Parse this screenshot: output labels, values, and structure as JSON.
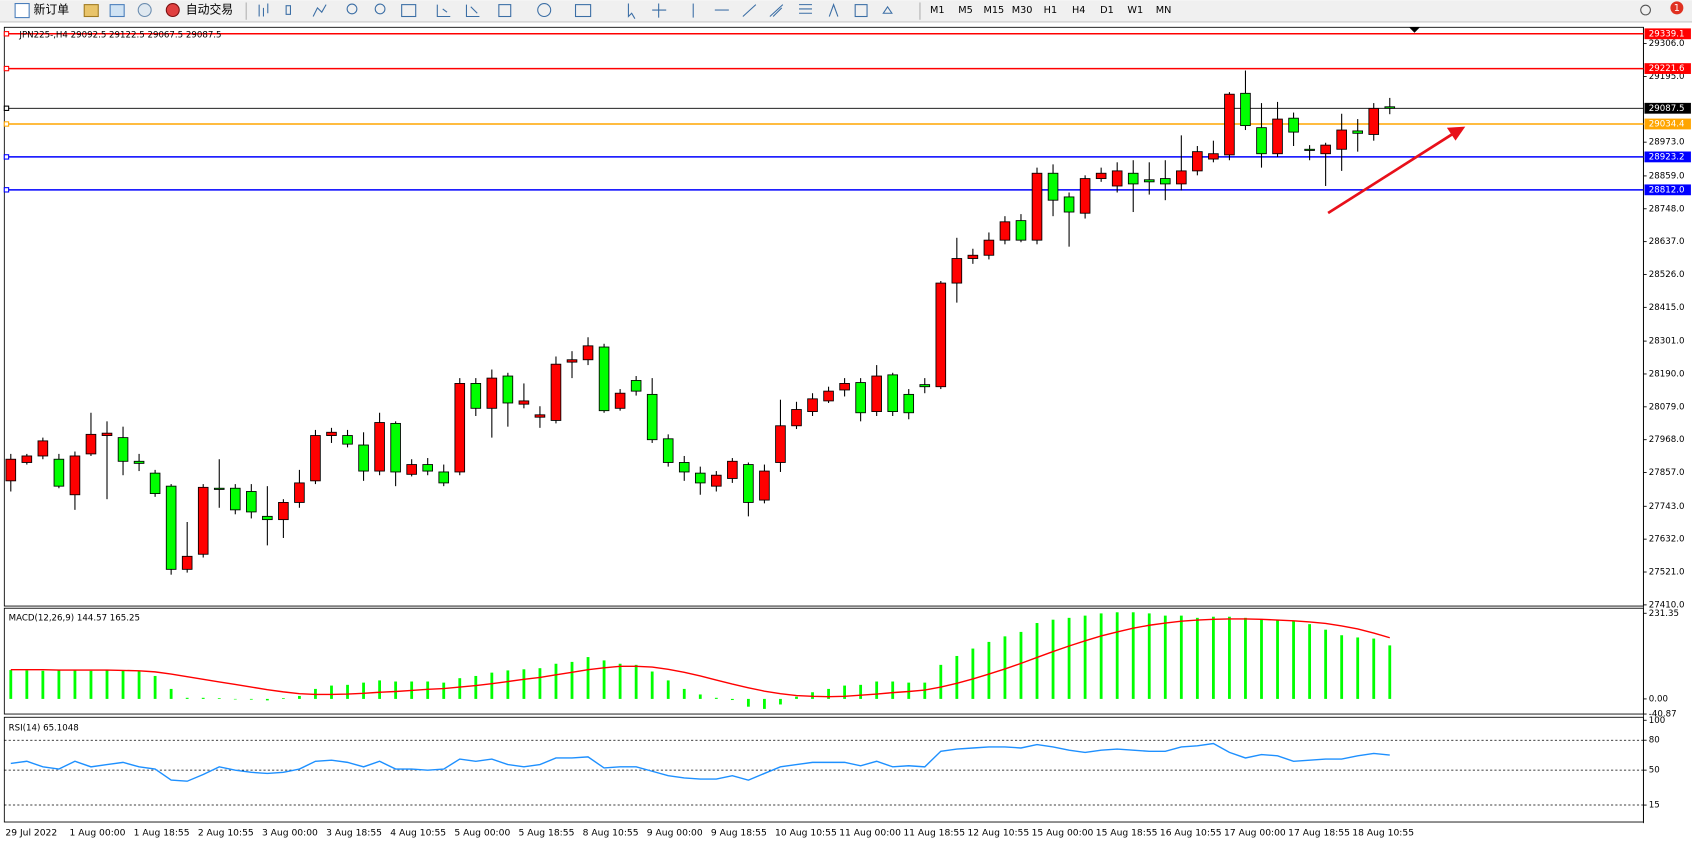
{
  "toolbar": {
    "new_order": "新订单",
    "auto_trading": "自动交易",
    "timeframes": [
      "M1",
      "M5",
      "M15",
      "M30",
      "H1",
      "H4",
      "D1",
      "W1",
      "MN"
    ],
    "notification": "1"
  },
  "chart_data": [
    {
      "type": "candlestick",
      "title": "JPN225-,H4  29092.5 29122.5 29067.5 29087.5",
      "categories": [
        "29 Jul 2022",
        null,
        null,
        null,
        "1 Aug 00:00",
        null,
        null,
        null,
        "1 Aug 18:55",
        null,
        null,
        null,
        "2 Aug 10:55",
        null,
        null,
        null,
        "3 Aug 00:00",
        null,
        null,
        null,
        "3 Aug 18:55",
        null,
        null,
        null,
        "4 Aug 10:55",
        null,
        null,
        null,
        "5 Aug 00:00",
        null,
        null,
        null,
        "5 Aug 18:55",
        null,
        null,
        null,
        "8 Aug 10:55",
        null,
        null,
        null,
        "9 Aug 00:00",
        null,
        null,
        null,
        "9 Aug 18:55",
        null,
        null,
        null,
        "10 Aug 10:55",
        null,
        null,
        null,
        "11 Aug 00:00",
        null,
        null,
        null,
        "11 Aug 18:55",
        null,
        null,
        null,
        "12 Aug 10:55",
        null,
        null,
        null,
        "15 Aug 00:00",
        null,
        null,
        null,
        "15 Aug 18:55",
        null,
        null,
        null,
        "16 Aug 10:55",
        null,
        null,
        null,
        "17 Aug 00:00",
        null,
        null,
        null,
        "17 Aug 18:55",
        null,
        null,
        null,
        "18 Aug 10:55",
        null,
        null
      ],
      "open": [
        27829,
        27891,
        27913,
        27902,
        27782,
        27920,
        27982,
        27975,
        27895,
        27855,
        27811,
        27530,
        27581,
        27804,
        27804,
        27793,
        27709,
        27698,
        27756,
        27829,
        27982,
        27982,
        27950,
        27862,
        28023,
        27851,
        27884,
        27859,
        27859,
        28158,
        28074,
        28183,
        28088,
        28044,
        28033,
        28230,
        28238,
        28281,
        28074,
        28168,
        28121,
        27971,
        27891,
        27855,
        27811,
        27837,
        27884,
        27764,
        27891,
        28015,
        28063,
        28099,
        28136,
        28161,
        28063,
        28187,
        28121,
        28154,
        28147,
        28497,
        28580,
        28591,
        28642,
        28708,
        28642,
        28868,
        28788,
        28733,
        28850,
        28825,
        28868,
        28846,
        28850,
        28832,
        28876,
        28916,
        28930,
        29138,
        29022,
        28934,
        29054,
        28949,
        28934,
        28949,
        29011,
        28999,
        29092.5
      ],
      "high": [
        27920,
        27920,
        27975,
        27920,
        27928,
        28059,
        28030,
        28012,
        27920,
        27866,
        27818,
        27690,
        27818,
        27902,
        27818,
        27818,
        27811,
        27767,
        27866,
        28001,
        28008,
        28001,
        27993,
        28059,
        28030,
        27902,
        27906,
        27884,
        28176,
        28176,
        28205,
        28194,
        28158,
        28081,
        28249,
        28267,
        28314,
        28292,
        28139,
        28183,
        28176,
        27986,
        27913,
        27877,
        27862,
        27906,
        27891,
        27884,
        28103,
        28096,
        28125,
        28147,
        28176,
        28176,
        28220,
        28194,
        28139,
        28176,
        28504,
        28650,
        28613,
        28668,
        28723,
        28730,
        28887,
        28898,
        28803,
        28861,
        28887,
        28905,
        28912,
        28905,
        28912,
        28996,
        28960,
        28978,
        29142,
        29215,
        29105,
        29109,
        29073,
        28963,
        28971,
        29069,
        29051,
        29105,
        29122.5
      ],
      "low": [
        27793,
        27884,
        27902,
        27804,
        27731,
        27913,
        27767,
        27848,
        27862,
        27775,
        27512,
        27519,
        27570,
        27738,
        27716,
        27702,
        27611,
        27636,
        27738,
        27818,
        27957,
        27942,
        27829,
        27848,
        27811,
        27844,
        27848,
        27811,
        27848,
        28048,
        27975,
        28012,
        28074,
        28008,
        28023,
        28176,
        28220,
        28059,
        28066,
        28117,
        27957,
        27877,
        27829,
        27782,
        27793,
        27822,
        27709,
        27753,
        27859,
        28004,
        28048,
        28092,
        28114,
        28030,
        28048,
        28048,
        28037,
        28125,
        28139,
        28431,
        28562,
        28577,
        28628,
        28635,
        28628,
        28723,
        28620,
        28715,
        28839,
        28803,
        28737,
        28796,
        28777,
        28810,
        28861,
        28905,
        28912,
        29014,
        28887,
        28923,
        28960,
        28912,
        28825,
        28876,
        28941,
        28978,
        29067.5
      ],
      "close": [
        27902,
        27913,
        27964,
        27811,
        27913,
        27986,
        27990,
        27895,
        27888,
        27786,
        27530,
        27574,
        27807,
        27800,
        27731,
        27724,
        27698,
        27756,
        27822,
        27982,
        27993,
        27953,
        27862,
        28026,
        27859,
        27884,
        27862,
        27822,
        28158,
        28074,
        28176,
        28092,
        28099,
        28052,
        28223,
        28238,
        28285,
        28066,
        28125,
        28132,
        27968,
        27891,
        27859,
        27822,
        27848,
        27895,
        27756,
        27862,
        28015,
        28070,
        28106,
        28132,
        28158,
        28059,
        28183,
        28063,
        28059,
        28147,
        28497,
        28580,
        28591,
        28642,
        28704,
        28642,
        28868,
        28777,
        28737,
        28850,
        28868,
        28876,
        28832,
        28839,
        28832,
        28876,
        28941,
        28934,
        29135,
        29029,
        28934,
        29051,
        29007,
        28945,
        28963,
        29014,
        29003,
        29087,
        29087.5
      ],
      "up_color": "#ff0000",
      "down_color": "#00ff00",
      "ylim": [
        27406,
        29361
      ],
      "yticks": [
        {
          "value": 29306,
          "label": "29306.0"
        },
        {
          "value": 29195,
          "label": "29195.0"
        },
        {
          "value": 28973,
          "label": "28973.0"
        },
        {
          "value": 28859,
          "label": "28859.0"
        },
        {
          "value": 28748,
          "label": "28748.0"
        },
        {
          "value": 28637,
          "label": "28637.0"
        },
        {
          "value": 28526,
          "label": "28526.0"
        },
        {
          "value": 28415,
          "label": "28415.0"
        },
        {
          "value": 28301,
          "label": "28301.0"
        },
        {
          "value": 28190,
          "label": "28190.0"
        },
        {
          "value": 28079,
          "label": "28079.0"
        },
        {
          "value": 27968,
          "label": "27968.0"
        },
        {
          "value": 27857,
          "label": "27857.0"
        },
        {
          "value": 27743,
          "label": "27743.0"
        },
        {
          "value": 27632,
          "label": "27632.0"
        },
        {
          "value": 27521,
          "label": "27521.0"
        },
        {
          "value": 27410,
          "label": "27410.0"
        }
      ],
      "hlines": [
        {
          "value": 29339.1,
          "color": "#ff0000"
        },
        {
          "value": 29221.6,
          "color": "#ff0000"
        },
        {
          "value": 29087.5,
          "color": "#000000"
        },
        {
          "value": 29034.4,
          "color": "#ffa500"
        },
        {
          "value": 28923.2,
          "color": "#0000ff"
        },
        {
          "value": 28812,
          "label": "28812.0",
          "color": "#0000ff"
        }
      ]
    },
    {
      "type": "macd",
      "title": "MACD(12,26,9) 144.57 165.25",
      "series": [
        {
          "type": "bar",
          "color": "#00ff00",
          "values": [
            78,
            77,
            76,
            77,
            77,
            76,
            77,
            76,
            74,
            62,
            27,
            3,
            3,
            2,
            0,
            -2,
            -4,
            2,
            8,
            27,
            36,
            38,
            44,
            50,
            47,
            47,
            47,
            44,
            56,
            62,
            71,
            77,
            80,
            83,
            95,
            100,
            113,
            104,
            95,
            92,
            74,
            50,
            27,
            12,
            3,
            -3,
            -21,
            -27,
            -15,
            6,
            18,
            27,
            36,
            38,
            47,
            47,
            44,
            44,
            92,
            116,
            136,
            154,
            169,
            181,
            205,
            214,
            219,
            225,
            231,
            234,
            234,
            231,
            225,
            225,
            219,
            222,
            222,
            219,
            216,
            214,
            211,
            202,
            187,
            172,
            166,
            163,
            144.57
          ]
        },
        {
          "type": "line",
          "color": "#ff0000",
          "values": [
            79,
            79,
            79,
            78,
            78,
            78,
            78,
            77,
            76,
            73,
            67,
            60,
            53,
            46,
            39,
            32,
            25,
            19,
            14,
            12,
            12,
            13,
            15,
            18,
            20,
            23,
            26,
            28,
            32,
            36,
            41,
            47,
            53,
            58,
            65,
            72,
            79,
            84,
            88,
            88,
            86,
            80,
            72,
            62,
            51,
            40,
            30,
            21,
            14,
            9,
            7,
            6,
            7,
            10,
            13,
            17,
            20,
            24,
            32,
            42,
            54,
            67,
            81,
            96,
            112,
            128,
            143,
            157,
            170,
            181,
            191,
            199,
            205,
            210,
            213,
            215,
            216,
            216,
            215,
            213,
            211,
            208,
            204,
            197,
            189,
            178,
            165.25
          ]
        }
      ],
      "ylim": [
        -40.87,
        245
      ],
      "yticks": [
        231.35,
        {
          "value": 0,
          "label": "0.00"
        },
        -40.87
      ]
    },
    {
      "type": "line",
      "title": "RSI(14) 65.1048",
      "series": [
        {
          "color": "#1e90ff",
          "values": [
            56.7,
            58.9,
            53.3,
            51.1,
            58.9,
            53.3,
            55.6,
            57.8,
            53.3,
            51.1,
            40.0,
            38.9,
            45.6,
            53.3,
            50,
            47.8,
            46.7,
            47.8,
            51.1,
            58.9,
            60,
            57.8,
            53.3,
            58.9,
            51.1,
            51.1,
            50,
            51.1,
            61.1,
            58.9,
            61.1,
            55.6,
            53.3,
            55.6,
            62.2,
            62.2,
            63.3,
            52.2,
            53.3,
            53.3,
            48.9,
            44.4,
            42.2,
            41.1,
            41.1,
            44.4,
            40.0,
            46.7,
            53.3,
            55.6,
            57.8,
            57.8,
            57.8,
            54.4,
            58.9,
            53.3,
            54.4,
            53.3,
            68.9,
            71.1,
            72.2,
            73.3,
            73.3,
            72.2,
            75.6,
            73.3,
            70,
            67.8,
            70,
            71.1,
            70,
            68.9,
            68.9,
            73.3,
            74.4,
            76.7,
            67.8,
            62.2,
            65.6,
            64.4,
            58.9,
            60,
            61.1,
            61.1,
            64.4,
            66.7,
            65.1048
          ]
        }
      ],
      "ylim": [
        -2,
        103
      ],
      "yticks": [
        100,
        80,
        50,
        15
      ],
      "levels": [
        80,
        50,
        15
      ]
    }
  ]
}
